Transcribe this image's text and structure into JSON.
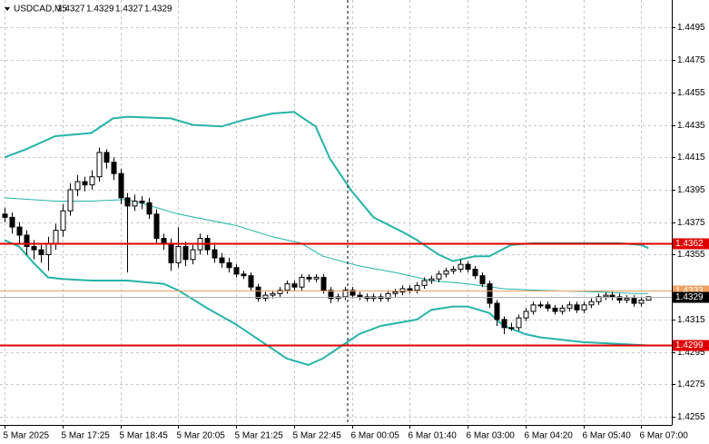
{
  "chart_data": {
    "type": "candlestick",
    "title": "USDCAD,M5",
    "categories": [
      "5 Mar 2025",
      null,
      null,
      null,
      null,
      null,
      null,
      null,
      "5 Mar 17:25",
      null,
      null,
      null,
      null,
      null,
      null,
      null,
      "5 Mar 18:45",
      null,
      null,
      null,
      null,
      null,
      null,
      null,
      "5 Mar 20:05",
      null,
      null,
      null,
      null,
      null,
      null,
      null,
      "5 Mar 21:25",
      null,
      null,
      null,
      null,
      null,
      null,
      null,
      "5 Mar 22:45",
      null,
      null,
      null,
      null,
      null,
      null,
      null,
      "6 Mar 00:05",
      null,
      null,
      null,
      null,
      null,
      null,
      null,
      "6 Mar 01:40",
      null,
      null,
      null,
      null,
      null,
      null,
      null,
      "6 Mar 03:00",
      null,
      null,
      null,
      null,
      null,
      null,
      null,
      "6 Mar 04:20",
      null,
      null,
      null,
      null,
      null,
      null,
      null,
      "6 Mar 05:40",
      null,
      null,
      null,
      null,
      null,
      null,
      null,
      "6 Mar 07:00",
      null
    ],
    "open": [
      1.438,
      1.4378,
      1.4372,
      1.4367,
      1.436,
      1.4358,
      1.4355,
      1.4362,
      1.437,
      1.4382,
      1.4395,
      1.44,
      1.4398,
      1.4403,
      1.4418,
      1.4412,
      1.4405,
      1.439,
      1.4385,
      1.4388,
      1.4387,
      1.438,
      1.4365,
      1.4362,
      1.435,
      1.436,
      1.4352,
      1.4358,
      1.4365,
      1.4358,
      1.4353,
      1.435,
      1.4347,
      1.4343,
      1.4342,
      1.4335,
      1.4328,
      1.433,
      1.4331,
      1.4333,
      1.4337,
      1.4335,
      1.4341,
      1.434,
      1.4341,
      1.4333,
      1.4328,
      1.4329,
      1.4333,
      1.433,
      1.4329,
      1.4328,
      1.4329,
      1.4328,
      1.4331,
      1.4332,
      1.4334,
      1.4333,
      1.4336,
      1.4339,
      1.434,
      1.4343,
      1.4345,
      1.4346,
      1.4349,
      1.4346,
      1.4342,
      1.4337,
      1.4325,
      1.4315,
      1.431,
      1.431,
      1.4316,
      1.432,
      1.4324,
      1.4324,
      1.4322,
      1.432,
      1.4322,
      1.4324,
      1.4321,
      1.4324,
      1.4326,
      1.4329,
      1.433,
      1.4329,
      1.4327,
      1.4328,
      1.4325,
      1.4327
    ],
    "high": [
      1.4384,
      1.4381,
      1.4375,
      1.437,
      1.4364,
      1.4361,
      1.4366,
      1.4374,
      1.4386,
      1.4399,
      1.4404,
      1.4403,
      1.4407,
      1.4421,
      1.442,
      1.4415,
      1.4408,
      1.4393,
      1.4392,
      1.4391,
      1.439,
      1.4383,
      1.4368,
      1.4365,
      1.4372,
      1.4363,
      1.4361,
      1.4368,
      1.4367,
      1.4361,
      1.4356,
      1.4353,
      1.4349,
      1.4345,
      1.4344,
      1.4337,
      1.4332,
      1.4333,
      1.4335,
      1.4339,
      1.4339,
      1.4343,
      1.4343,
      1.4343,
      1.4343,
      1.4335,
      1.4331,
      1.4335,
      1.4335,
      1.4332,
      1.4331,
      1.4331,
      1.4331,
      1.4333,
      1.4334,
      1.4336,
      1.4336,
      1.4338,
      1.4341,
      1.4342,
      1.4345,
      1.4347,
      1.4348,
      1.4352,
      1.4351,
      1.4348,
      1.4344,
      1.4339,
      1.4327,
      1.4317,
      1.4313,
      1.4318,
      1.4322,
      1.4326,
      1.4326,
      1.4326,
      1.4324,
      1.4324,
      1.4326,
      1.4326,
      1.4326,
      1.4328,
      1.4331,
      1.4332,
      1.4332,
      1.4331,
      1.433,
      1.433,
      1.4329,
      1.4329
    ],
    "low": [
      1.4375,
      1.4368,
      1.4362,
      1.4355,
      1.4352,
      1.435,
      1.4345,
      1.4358,
      1.4366,
      1.4379,
      1.4391,
      1.4394,
      1.4395,
      1.44,
      1.4408,
      1.4401,
      1.4386,
      1.4344,
      1.4382,
      1.4383,
      1.4377,
      1.4362,
      1.4358,
      1.4345,
      1.4347,
      1.4348,
      1.4349,
      1.4355,
      1.4355,
      1.435,
      1.4347,
      1.4344,
      1.4341,
      1.434,
      1.4333,
      1.4326,
      1.4326,
      1.4328,
      1.4329,
      1.4331,
      1.4333,
      1.4333,
      1.4338,
      1.4338,
      1.4331,
      1.4325,
      1.4326,
      1.4327,
      1.4328,
      1.4327,
      1.4326,
      1.4326,
      1.4326,
      1.4326,
      1.4329,
      1.433,
      1.4331,
      1.4331,
      1.4334,
      1.4337,
      1.4338,
      1.4341,
      1.4343,
      1.4344,
      1.4344,
      1.434,
      1.4335,
      1.4322,
      1.4311,
      1.4306,
      1.4308,
      1.4308,
      1.4314,
      1.4318,
      1.4322,
      1.432,
      1.4318,
      1.4318,
      1.432,
      1.4319,
      1.4319,
      1.4322,
      1.4324,
      1.4327,
      1.4327,
      1.4325,
      1.4325,
      1.4323,
      1.4323,
      1.4327
    ],
    "close": [
      1.4378,
      1.4372,
      1.4367,
      1.436,
      1.4358,
      1.4355,
      1.4362,
      1.437,
      1.4382,
      1.4395,
      1.44,
      1.4398,
      1.4403,
      1.4418,
      1.4412,
      1.4405,
      1.439,
      1.4385,
      1.4388,
      1.4387,
      1.438,
      1.4365,
      1.4362,
      1.435,
      1.436,
      1.4352,
      1.4358,
      1.4365,
      1.4358,
      1.4353,
      1.435,
      1.4347,
      1.4343,
      1.4342,
      1.4335,
      1.4328,
      1.433,
      1.4331,
      1.4333,
      1.4337,
      1.4335,
      1.4341,
      1.434,
      1.4341,
      1.4333,
      1.4328,
      1.4329,
      1.4333,
      1.433,
      1.4329,
      1.4328,
      1.4329,
      1.4328,
      1.4331,
      1.4332,
      1.4334,
      1.4333,
      1.4336,
      1.4339,
      1.434,
      1.4343,
      1.4345,
      1.4346,
      1.4349,
      1.4346,
      1.4342,
      1.4337,
      1.4325,
      1.4315,
      1.431,
      1.431,
      1.4316,
      1.432,
      1.4324,
      1.4324,
      1.4322,
      1.432,
      1.4322,
      1.4324,
      1.4321,
      1.4324,
      1.4326,
      1.4329,
      1.433,
      1.4329,
      1.4327,
      1.4328,
      1.4325,
      1.4327,
      1.4329
    ],
    "bands": [
      {
        "color": "#26b3a8",
        "width": 2,
        "x": [
          0,
          3,
          7,
          12,
          15,
          17,
          23,
          26,
          30,
          33,
          37,
          40,
          43,
          45,
          48,
          51,
          55,
          57,
          60,
          62,
          65,
          67,
          70,
          73,
          78,
          85,
          88,
          89
        ],
        "values": [
          1.4415,
          1.442,
          1.4428,
          1.443,
          1.4439,
          1.444,
          1.4439,
          1.4435,
          1.4434,
          1.4438,
          1.4442,
          1.4443,
          1.4434,
          1.4414,
          1.4394,
          1.4378,
          1.4369,
          1.4364,
          1.4355,
          1.4351,
          1.4354,
          1.4354,
          1.4361,
          1.4362,
          1.4362,
          1.4362,
          1.4361,
          1.4359
        ]
      },
      {
        "color": "#26b3a8",
        "width": 1,
        "x": [
          0,
          7,
          12,
          17,
          21,
          24,
          32,
          37,
          41,
          44,
          49,
          54,
          59,
          64,
          69,
          74,
          82,
          87,
          89
        ],
        "values": [
          1.439,
          1.4388,
          1.4388,
          1.4389,
          1.4384,
          1.438,
          1.4373,
          1.4366,
          1.4362,
          1.4354,
          1.4348,
          1.4344,
          1.4339,
          1.4337,
          1.4334,
          1.4333,
          1.4332,
          1.4331,
          1.4331
        ]
      },
      {
        "color": "#26b3a8",
        "width": 2,
        "x": [
          0,
          2,
          4,
          6,
          8,
          12,
          17,
          22,
          24,
          28,
          32,
          36,
          39,
          42,
          44,
          47,
          49,
          52,
          57,
          59,
          62,
          64,
          67,
          69,
          72,
          74,
          80,
          85,
          89
        ],
        "values": [
          1.4364,
          1.436,
          1.435,
          1.4341,
          1.434,
          1.4339,
          1.4339,
          1.4337,
          1.4333,
          1.4322,
          1.4312,
          1.43,
          1.4291,
          1.4287,
          1.4291,
          1.43,
          1.4306,
          1.4311,
          1.4315,
          1.4321,
          1.4323,
          1.4323,
          1.4319,
          1.4311,
          1.4306,
          1.4304,
          1.4301,
          1.43,
          1.4299
        ]
      }
    ],
    "levels": [
      {
        "value": 1.4362,
        "color": "#e00000",
        "label_color": "#e00000"
      },
      {
        "value": 1.4299,
        "color": "#e00000",
        "label_color": "#e00000"
      },
      {
        "value": 1.4333,
        "color": "#f0a060",
        "label_color": "#f0a060"
      },
      {
        "value": 1.4329,
        "color": "#b0b0b0",
        "label_color": "#000000"
      }
    ],
    "ylim": [
      1.425,
      1.4512
    ],
    "yticks": [
      1.4255,
      1.4275,
      1.4295,
      1.4315,
      1.4355,
      1.4375,
      1.4395,
      1.4415,
      1.4435,
      1.4455,
      1.4475,
      1.4495
    ],
    "grid": true
  }
}
